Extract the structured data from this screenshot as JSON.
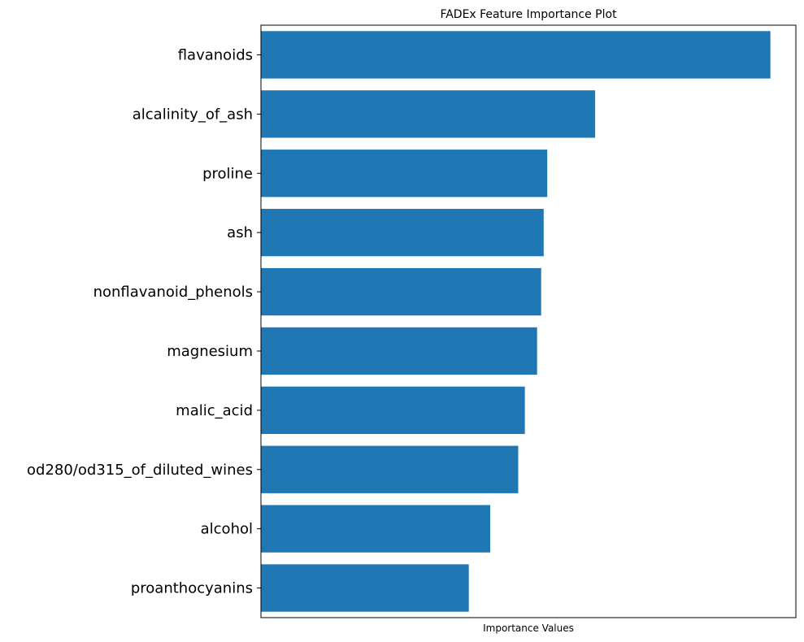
{
  "chart_data": {
    "type": "bar",
    "orientation": "horizontal",
    "title": "FADEx Feature Importance Plot",
    "xlabel": "Importance Values",
    "ylabel": "",
    "x_ticks_shown": false,
    "grid": false,
    "bar_color": "#1f77b4",
    "xlim": [
      0,
      1.05
    ],
    "categories": [
      "flavanoids",
      "alcalinity_of_ash",
      "proline",
      "ash",
      "nonflavanoid_phenols",
      "magnesium",
      "malic_acid",
      "od280/od315_of_diluted_wines",
      "alcohol",
      "proanthocyanins"
    ],
    "values": [
      1.0,
      0.656,
      0.562,
      0.555,
      0.55,
      0.542,
      0.518,
      0.505,
      0.45,
      0.408
    ]
  }
}
